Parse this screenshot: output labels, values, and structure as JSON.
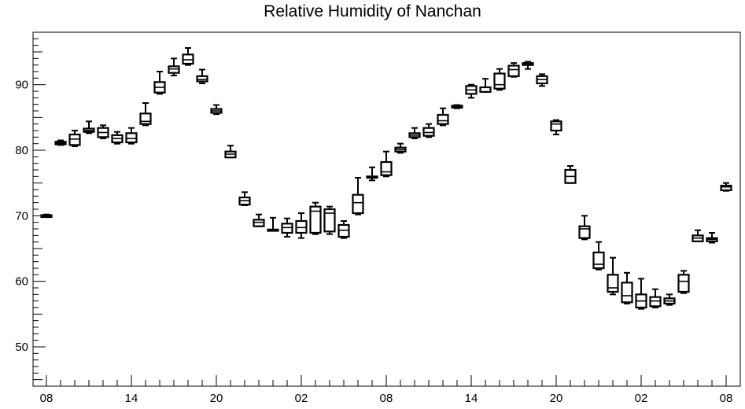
{
  "chart_data": {
    "type": "box",
    "title": "Relative Humidity of Nanchan",
    "xlabel": "",
    "ylabel": "",
    "ylim": [
      44,
      98
    ],
    "yticks": [
      50,
      60,
      70,
      80,
      90
    ],
    "xtick_labels": [
      "08",
      "14",
      "20",
      "02",
      "08",
      "14",
      "20",
      "02",
      "08"
    ],
    "xtick_hour_index": [
      0,
      6,
      12,
      18,
      24,
      30,
      36,
      42,
      48
    ],
    "x_hours": 48,
    "grid": false,
    "boxes": [
      {
        "x": 0,
        "low": 69.8,
        "q1": 69.8,
        "median": 70.0,
        "q3": 70.1,
        "high": 70.2
      },
      {
        "x": 1,
        "low": 80.8,
        "q1": 80.9,
        "median": 81.1,
        "q3": 81.3,
        "high": 81.5
      },
      {
        "x": 2,
        "low": 80.6,
        "q1": 80.8,
        "median": 81.7,
        "q3": 82.4,
        "high": 83.0
      },
      {
        "x": 3,
        "low": 82.6,
        "q1": 82.8,
        "median": 83.0,
        "q3": 83.3,
        "high": 84.4
      },
      {
        "x": 4,
        "low": 81.8,
        "q1": 82.0,
        "median": 82.7,
        "q3": 83.4,
        "high": 83.8
      },
      {
        "x": 5,
        "low": 81.0,
        "q1": 81.2,
        "median": 81.8,
        "q3": 82.3,
        "high": 82.8
      },
      {
        "x": 6,
        "low": 81.0,
        "q1": 81.2,
        "median": 81.8,
        "q3": 82.6,
        "high": 83.4
      },
      {
        "x": 7,
        "low": 83.8,
        "q1": 84.0,
        "median": 84.4,
        "q3": 85.6,
        "high": 87.2
      },
      {
        "x": 8,
        "low": 88.6,
        "q1": 88.8,
        "median": 89.6,
        "q3": 90.4,
        "high": 92.0
      },
      {
        "x": 9,
        "low": 91.4,
        "q1": 91.8,
        "median": 92.4,
        "q3": 92.8,
        "high": 94.0
      },
      {
        "x": 10,
        "low": 93.0,
        "q1": 93.2,
        "median": 93.8,
        "q3": 94.6,
        "high": 95.6
      },
      {
        "x": 11,
        "low": 90.2,
        "q1": 90.5,
        "median": 90.8,
        "q3": 91.3,
        "high": 92.3
      },
      {
        "x": 12,
        "low": 85.5,
        "q1": 85.7,
        "median": 86.0,
        "q3": 86.3,
        "high": 86.9
      },
      {
        "x": 13,
        "low": 78.9,
        "q1": 78.9,
        "median": 79.4,
        "q3": 79.8,
        "high": 80.7
      },
      {
        "x": 14,
        "low": 71.6,
        "q1": 71.7,
        "median": 72.3,
        "q3": 72.8,
        "high": 73.6
      },
      {
        "x": 15,
        "low": 68.4,
        "q1": 68.4,
        "median": 69.0,
        "q3": 69.4,
        "high": 70.2
      },
      {
        "x": 16,
        "low": 67.7,
        "q1": 67.7,
        "median": 67.9,
        "q3": 67.9,
        "high": 69.7
      },
      {
        "x": 17,
        "low": 66.8,
        "q1": 67.4,
        "median": 68.2,
        "q3": 68.8,
        "high": 69.6
      },
      {
        "x": 18,
        "low": 66.6,
        "q1": 67.4,
        "median": 68.2,
        "q3": 69.2,
        "high": 70.4
      },
      {
        "x": 19,
        "low": 67.2,
        "q1": 67.4,
        "median": 70.7,
        "q3": 71.4,
        "high": 72.0
      },
      {
        "x": 20,
        "low": 67.2,
        "q1": 67.6,
        "median": 70.4,
        "q3": 71.0,
        "high": 71.4
      },
      {
        "x": 21,
        "low": 66.6,
        "q1": 66.8,
        "median": 67.8,
        "q3": 68.6,
        "high": 69.2
      },
      {
        "x": 22,
        "low": 70.2,
        "q1": 70.4,
        "median": 72.0,
        "q3": 73.2,
        "high": 75.8
      },
      {
        "x": 23,
        "low": 75.4,
        "q1": 75.8,
        "median": 76.0,
        "q3": 76.0,
        "high": 77.4
      },
      {
        "x": 24,
        "low": 76.0,
        "q1": 76.2,
        "median": 76.7,
        "q3": 78.2,
        "high": 79.8
      },
      {
        "x": 25,
        "low": 79.6,
        "q1": 79.8,
        "median": 80.1,
        "q3": 80.4,
        "high": 81.0
      },
      {
        "x": 26,
        "low": 81.8,
        "q1": 82.0,
        "median": 82.3,
        "q3": 82.6,
        "high": 83.4
      },
      {
        "x": 27,
        "low": 82.0,
        "q1": 82.2,
        "median": 82.7,
        "q3": 83.4,
        "high": 84.0
      },
      {
        "x": 28,
        "low": 83.8,
        "q1": 84.0,
        "median": 84.5,
        "q3": 85.4,
        "high": 86.4
      },
      {
        "x": 29,
        "low": 86.4,
        "q1": 86.5,
        "median": 86.7,
        "q3": 86.8,
        "high": 86.9
      },
      {
        "x": 30,
        "low": 88.0,
        "q1": 88.6,
        "median": 89.2,
        "q3": 89.8,
        "high": 90.0
      },
      {
        "x": 31,
        "low": 88.9,
        "q1": 88.9,
        "median": 89.6,
        "q3": 89.6,
        "high": 90.9
      },
      {
        "x": 32,
        "low": 89.2,
        "q1": 89.4,
        "median": 90.0,
        "q3": 91.7,
        "high": 92.4
      },
      {
        "x": 33,
        "low": 91.2,
        "q1": 91.3,
        "median": 92.3,
        "q3": 92.9,
        "high": 93.3
      },
      {
        "x": 34,
        "low": 92.4,
        "q1": 93.0,
        "median": 93.2,
        "q3": 93.3,
        "high": 93.5
      },
      {
        "x": 35,
        "low": 89.8,
        "q1": 90.2,
        "median": 90.8,
        "q3": 91.3,
        "high": 91.6
      },
      {
        "x": 36,
        "low": 82.4,
        "q1": 83.0,
        "median": 84.0,
        "q3": 84.4,
        "high": 84.6
      },
      {
        "x": 37,
        "low": 75.0,
        "q1": 75.0,
        "median": 76.0,
        "q3": 77.0,
        "high": 77.6
      },
      {
        "x": 38,
        "low": 66.4,
        "q1": 66.6,
        "median": 68.0,
        "q3": 68.4,
        "high": 70.0
      },
      {
        "x": 39,
        "low": 61.8,
        "q1": 62.0,
        "median": 62.6,
        "q3": 64.4,
        "high": 66.0
      },
      {
        "x": 40,
        "low": 58.0,
        "q1": 58.4,
        "median": 59.0,
        "q3": 61.0,
        "high": 63.6
      },
      {
        "x": 41,
        "low": 56.6,
        "q1": 56.8,
        "median": 57.8,
        "q3": 59.8,
        "high": 61.3
      },
      {
        "x": 42,
        "low": 55.8,
        "q1": 56.0,
        "median": 57.0,
        "q3": 58.0,
        "high": 60.4
      },
      {
        "x": 43,
        "low": 56.0,
        "q1": 56.2,
        "median": 57.0,
        "q3": 57.6,
        "high": 58.8
      },
      {
        "x": 44,
        "low": 56.4,
        "q1": 56.6,
        "median": 57.0,
        "q3": 57.4,
        "high": 58.0
      },
      {
        "x": 45,
        "low": 58.2,
        "q1": 58.4,
        "median": 60.0,
        "q3": 61.0,
        "high": 61.6
      },
      {
        "x": 46,
        "low": 66.1,
        "q1": 66.1,
        "median": 66.6,
        "q3": 67.0,
        "high": 67.8
      },
      {
        "x": 47,
        "low": 65.9,
        "q1": 66.1,
        "median": 66.4,
        "q3": 66.6,
        "high": 67.4
      },
      {
        "x": 48,
        "low": 73.8,
        "q1": 73.9,
        "median": 74.4,
        "q3": 74.6,
        "high": 75.0
      }
    ]
  }
}
